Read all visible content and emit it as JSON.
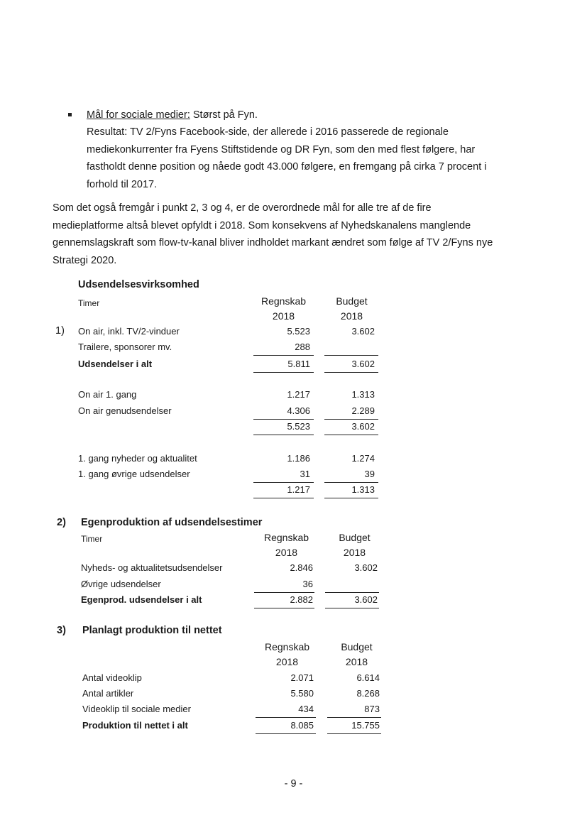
{
  "bullet_item": {
    "heading": "Mål for sociale medier:",
    "heading_rest": " Størst på Fyn.",
    "lines": [
      "Resultat: TV 2/Fyns Facebook-side, der allerede i 2016 passerede de regionale",
      "mediekonkurrenter fra Fyens Stiftstidende og DR Fyn, som den med flest følgere, har",
      "fastholdt denne position og nåede godt 43.000 følgere, en fremgang på cirka 7 procent i",
      "forhold til 2017."
    ]
  },
  "paragraph": [
    "Som det også fremgår i punkt 2, 3 og 4, er de overordnede mål for alle tre af de fire",
    "medieplatforme altså blevet opfyldt i 2018. Som konsekvens af Nyhedskanalens manglende",
    "gennemslagskraft som flow-tv-kanal bliver indholdet markant ændret som følge af TV 2/Fyns nye",
    "Strategi 2020."
  ],
  "sections": [
    {
      "number": "",
      "title": "Udsendelsesvirksomhed",
      "unit": "Timer",
      "col1": [
        "Regnskab",
        "2018"
      ],
      "col2": [
        "Budget",
        "2018"
      ],
      "rows": [
        {
          "num": "1)",
          "label": "On air, inkl. TV/2-vinduer",
          "r": "5.523",
          "b": "3.602",
          "bold": false,
          "rule": false
        },
        {
          "num": "",
          "label": "Trailere, sponsorer mv.",
          "r": "288",
          "b": "",
          "bold": false,
          "rule": true
        },
        {
          "num": "",
          "label": "Udsendelser i alt",
          "r": "5.811",
          "b": "3.602",
          "bold": true,
          "rule": true
        },
        {
          "num": "",
          "label": "On air 1. gang",
          "r": "1.217",
          "b": "1.313",
          "bold": false,
          "rule": false
        },
        {
          "num": "",
          "label": "On air genudsendelser",
          "r": "4.306",
          "b": "2.289",
          "bold": false,
          "rule": true
        },
        {
          "num": "",
          "label": "",
          "r": "5.523",
          "b": "3.602",
          "bold": false,
          "rule": true
        },
        {
          "num": "",
          "label": "1. gang nyheder og aktualitet",
          "r": "1.186",
          "b": "1.274",
          "bold": false,
          "rule": false
        },
        {
          "num": "",
          "label": "1. gang øvrige udsendelser",
          "r": "31",
          "b": "39",
          "bold": false,
          "rule": true
        },
        {
          "num": "",
          "label": "",
          "r": "1.217",
          "b": "1.313",
          "bold": false,
          "rule": true
        }
      ]
    },
    {
      "number": "2)",
      "title": "Egenproduktion af udsendelsestimer",
      "unit": "Timer",
      "col1": [
        "Regnskab",
        "2018"
      ],
      "col2": [
        "Budget",
        "2018"
      ],
      "rows": [
        {
          "num": "",
          "label": "Nyheds- og aktualitetsudsendelser",
          "r": "2.846",
          "b": "3.602",
          "bold": false,
          "rule": false
        },
        {
          "num": "",
          "label": "Øvrige udsendelser",
          "r": "36",
          "b": "",
          "bold": false,
          "rule": true
        },
        {
          "num": "",
          "label": "Egenprod. udsendelser i alt",
          "r": "2.882",
          "b": "3.602",
          "bold": true,
          "rule": true
        }
      ]
    },
    {
      "number": "3)",
      "title": "Planlagt produktion til nettet",
      "unit": "",
      "col1": [
        "Regnskab",
        "2018"
      ],
      "col2": [
        "Budget",
        "2018"
      ],
      "rows": [
        {
          "num": "",
          "label": "Antal videoklip",
          "r": "2.071",
          "b": "6.614",
          "bold": false,
          "rule": false
        },
        {
          "num": "",
          "label": "Antal artikler",
          "r": "5.580",
          "b": "8.268",
          "bold": false,
          "rule": false
        },
        {
          "num": "",
          "label": "Videoklip til sociale medier",
          "r": "434",
          "b": "873",
          "bold": false,
          "rule": true
        },
        {
          "num": "",
          "label": "Produktion til nettet i alt",
          "r": "8.085",
          "b": "15.755",
          "bold": true,
          "rule": true
        }
      ]
    }
  ],
  "footer": {
    "page_number": "- 9 -"
  }
}
